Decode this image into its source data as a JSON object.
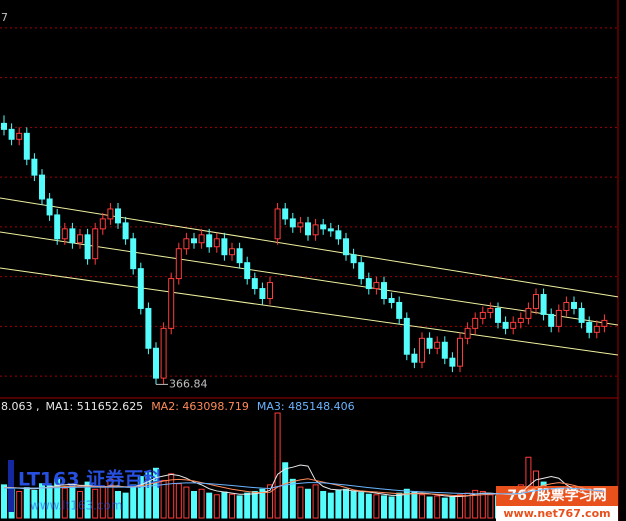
{
  "chart_data": [
    {
      "type": "candlestick",
      "corner_label": "7",
      "opens": [
        498,
        495,
        490,
        493,
        480,
        472,
        460,
        452,
        440,
        445,
        438,
        442,
        430,
        445,
        450,
        455,
        448,
        440,
        425,
        405,
        385,
        370,
        395,
        420,
        435,
        440,
        438,
        442,
        436,
        440,
        432,
        435,
        428,
        420,
        415,
        410,
        440,
        455,
        450,
        446,
        448,
        442,
        447,
        445,
        444,
        440,
        432,
        428,
        420,
        415,
        418,
        410,
        408,
        400,
        382,
        378,
        390,
        385,
        388,
        380,
        376,
        390,
        395,
        400,
        403,
        405,
        398,
        395,
        398,
        400,
        405,
        412,
        402,
        396,
        404,
        408,
        405,
        398,
        393,
        396
      ],
      "highs": [
        502,
        498,
        496,
        496,
        483,
        475,
        463,
        455,
        448,
        448,
        445,
        445,
        448,
        453,
        458,
        458,
        451,
        443,
        428,
        408,
        388,
        398,
        423,
        438,
        443,
        443,
        445,
        445,
        443,
        443,
        438,
        438,
        431,
        423,
        418,
        421,
        458,
        458,
        453,
        451,
        451,
        450,
        450,
        448,
        447,
        443,
        435,
        431,
        423,
        421,
        421,
        413,
        411,
        403,
        385,
        393,
        393,
        391,
        391,
        383,
        393,
        398,
        403,
        406,
        408,
        408,
        401,
        401,
        403,
        408,
        415,
        415,
        405,
        407,
        411,
        411,
        408,
        401,
        399,
        402
      ],
      "lows": [
        492,
        487,
        487,
        477,
        469,
        457,
        449,
        437,
        437,
        435,
        435,
        427,
        427,
        442,
        447,
        445,
        437,
        422,
        402,
        382,
        366.84,
        367,
        392,
        417,
        432,
        435,
        435,
        433,
        433,
        429,
        429,
        425,
        417,
        412,
        407,
        407,
        437,
        447,
        443,
        443,
        439,
        439,
        442,
        441,
        437,
        429,
        425,
        417,
        412,
        412,
        407,
        405,
        397,
        379,
        375,
        375,
        382,
        382,
        377,
        373,
        373,
        387,
        392,
        397,
        400,
        395,
        392,
        392,
        395,
        397,
        402,
        399,
        393,
        393,
        401,
        402,
        395,
        390,
        390,
        393
      ],
      "closes": [
        495,
        490,
        493,
        480,
        472,
        460,
        452,
        440,
        445,
        438,
        442,
        430,
        445,
        450,
        455,
        448,
        440,
        425,
        405,
        385,
        370,
        395,
        420,
        435,
        440,
        438,
        442,
        436,
        440,
        432,
        435,
        428,
        420,
        415,
        410,
        418,
        455,
        450,
        446,
        448,
        442,
        447,
        445,
        444,
        440,
        432,
        428,
        420,
        415,
        418,
        410,
        408,
        400,
        382,
        378,
        390,
        385,
        388,
        380,
        376,
        390,
        395,
        400,
        403,
        405,
        398,
        395,
        398,
        400,
        405,
        412,
        402,
        396,
        404,
        408,
        405,
        398,
        393,
        396,
        399
      ],
      "ylim": [
        360,
        560
      ],
      "yticks": [
        371,
        396,
        421,
        446,
        471,
        496,
        521,
        546
      ],
      "grid": true,
      "up_color": "#ff3c3c",
      "down_color": "#54fcfc",
      "grid_color": "#a00000",
      "channel_lines": [
        [
          460.5,
          410.8
        ],
        [
          443.4,
          396.7
        ],
        [
          425.3,
          381.6
        ]
      ],
      "channel_color": "#f0f0a0"
    },
    {
      "type": "volume",
      "header": "8.063 ,",
      "values": [
        600000,
        520000,
        480000,
        550000,
        500000,
        620000,
        580000,
        700000,
        540000,
        600000,
        480000,
        650000,
        520000,
        560000,
        700000,
        480000,
        450000,
        600000,
        750000,
        820000,
        900000,
        680000,
        800000,
        620000,
        560000,
        480000,
        520000,
        450000,
        420000,
        470000,
        430000,
        400000,
        450000,
        480000,
        520000,
        600000,
        1900000,
        1000000,
        700000,
        560000,
        520000,
        600000,
        480000,
        450000,
        500000,
        520000,
        480000,
        460000,
        430000,
        420000,
        400000,
        380000,
        450000,
        520000,
        480000,
        420000,
        380000,
        400000,
        360000,
        380000,
        420000,
        450000,
        500000,
        480000,
        420000,
        400000,
        380000,
        420000,
        600000,
        1100000,
        850000,
        650000,
        500000,
        480000,
        520000,
        450000,
        400000,
        380000,
        400000,
        420000
      ],
      "ylim": [
        0,
        2100000
      ],
      "series": [
        {
          "name": "MA1: 511652.625",
          "color": "#e8e8e8",
          "values": [
            560000,
            550000,
            540000,
            530000,
            530000,
            540000,
            560000,
            590000,
            600000,
            610000,
            590000,
            590000,
            570000,
            560000,
            580000,
            580000,
            560000,
            560000,
            600000,
            660000,
            730000,
            760000,
            790000,
            770000,
            720000,
            650000,
            600000,
            530000,
            490000,
            470000,
            450000,
            430000,
            430000,
            440000,
            460000,
            500000,
            790000,
            890000,
            920000,
            960000,
            940000,
            680000,
            570000,
            520000,
            510000,
            510000,
            490000,
            480000,
            470000,
            450000,
            430000,
            410000,
            410000,
            430000,
            450000,
            450000,
            440000,
            420000,
            400000,
            390000,
            390000,
            400000,
            430000,
            450000,
            450000,
            440000,
            430000,
            420000,
            440000,
            580000,
            690000,
            720000,
            750000,
            720000,
            600000,
            520000,
            460000,
            440000,
            430000,
            511652.625
          ]
        },
        {
          "name": "MA2: 463098.719",
          "color": "#ff8a5a",
          "values": [
            550000,
            548000,
            545000,
            542000,
            540000,
            545000,
            550000,
            560000,
            570000,
            575000,
            575000,
            575000,
            570000,
            568000,
            572000,
            570000,
            565000,
            565000,
            580000,
            610000,
            640000,
            670000,
            690000,
            700000,
            690000,
            670000,
            640000,
            610000,
            580000,
            550000,
            520000,
            500000,
            480000,
            465000,
            460000,
            465000,
            560000,
            620000,
            660000,
            690000,
            710000,
            680000,
            650000,
            620000,
            590000,
            550000,
            510000,
            490000,
            480000,
            470000,
            460000,
            450000,
            440000,
            435000,
            440000,
            440000,
            435000,
            430000,
            420000,
            410000,
            405000,
            405000,
            410000,
            420000,
            430000,
            435000,
            435000,
            430000,
            440000,
            500000,
            550000,
            590000,
            620000,
            640000,
            620000,
            590000,
            550000,
            510000,
            480000,
            463098.719
          ]
        },
        {
          "name": "MA3: 485148.406",
          "color": "#6ab4ff",
          "values": [
            540000,
            540000,
            540000,
            540000,
            540000,
            542000,
            545000,
            548000,
            552000,
            555000,
            557000,
            558000,
            558000,
            558000,
            560000,
            560000,
            560000,
            560000,
            565000,
            575000,
            590000,
            605000,
            620000,
            630000,
            635000,
            635000,
            630000,
            622000,
            612000,
            600000,
            588000,
            575000,
            562000,
            550000,
            540000,
            535000,
            570000,
            595000,
            615000,
            630000,
            640000,
            640000,
            635000,
            625000,
            612000,
            598000,
            582000,
            566000,
            550000,
            536000,
            522000,
            510000,
            498000,
            488000,
            480000,
            474000,
            468000,
            462000,
            456000,
            450000,
            446000,
            442000,
            440000,
            440000,
            440000,
            440000,
            440000,
            440000,
            445000,
            470000,
            495000,
            515000,
            530000,
            540000,
            540000,
            535000,
            525000,
            512000,
            500000,
            485148.406
          ]
        }
      ]
    }
  ],
  "watermarks": {
    "lt163": "LT163 证券百科",
    "lt163_url": "www.lt163.com",
    "site": "767股票学习网",
    "site_url": "www.net767.com"
  }
}
